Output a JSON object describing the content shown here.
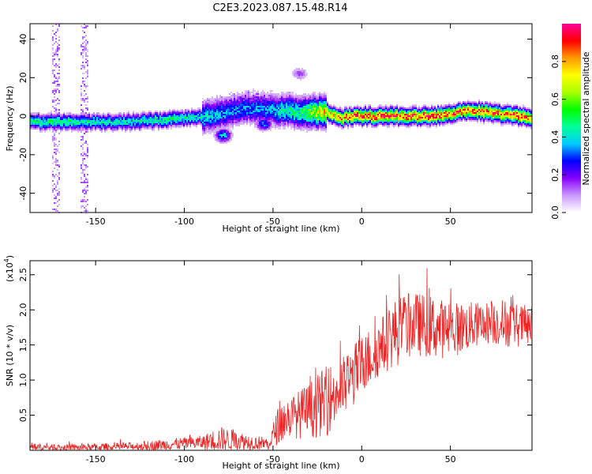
{
  "figure": {
    "title": "C2E3.2023.087.15.48.R14"
  },
  "chart_data": [
    {
      "type": "heatmap",
      "title": "C2E3.2023.087.15.48.R14",
      "xlabel": "Height of straight line (km)",
      "ylabel": "Frequency (Hz)",
      "xlim": [
        -187,
        96
      ],
      "ylim": [
        -50,
        48
      ],
      "xticks": [
        -150,
        -100,
        -50,
        0,
        50
      ],
      "yticks": [
        -40,
        -20,
        0,
        20,
        40
      ],
      "colorbar": {
        "label": "Normalized spectral amplitude",
        "range": [
          0.0,
          1.0
        ],
        "ticks": [
          0.0,
          0.2,
          0.4,
          0.6,
          0.8
        ],
        "colors": [
          "#ffffff",
          "#cc99ff",
          "#8800ff",
          "#0000ff",
          "#00ccff",
          "#00ff99",
          "#00ff00",
          "#aaff00",
          "#ffff00",
          "#ff9900",
          "#ff0000",
          "#ff0099"
        ]
      },
      "ridge": {
        "description": "Dominant frequency trace versus height",
        "x": [
          -187,
          -170,
          -150,
          -130,
          -110,
          -95,
          -85,
          -75,
          -65,
          -55,
          -50,
          -45,
          -40,
          -35,
          -30,
          -25,
          -20,
          -15,
          -10,
          -5,
          0,
          10,
          20,
          30,
          40,
          50,
          55,
          60,
          70,
          80,
          90,
          96
        ],
        "y": [
          -3,
          -3,
          -3,
          -3,
          -2,
          -1,
          0,
          2,
          4,
          4,
          3,
          3,
          3,
          2,
          2,
          2,
          2,
          0,
          -1,
          0,
          0,
          0,
          0,
          0,
          0,
          1,
          2,
          3,
          2,
          1,
          0,
          -2
        ],
        "peak_amplitude": [
          0.45,
          0.5,
          0.45,
          0.45,
          0.5,
          0.45,
          0.4,
          0.35,
          0.35,
          0.35,
          0.4,
          0.45,
          0.5,
          0.5,
          0.6,
          0.7,
          0.8,
          0.85,
          0.9,
          0.95,
          0.95,
          0.95,
          0.95,
          0.95,
          1.0,
          0.95,
          0.9,
          0.9,
          0.95,
          0.9,
          0.95,
          0.9
        ]
      },
      "extra_blobs": [
        {
          "x": -78,
          "y": -10,
          "amp": 0.4
        },
        {
          "x": -55,
          "y": -4,
          "amp": 0.35
        },
        {
          "x": -35,
          "y": 22,
          "amp": 0.15
        },
        {
          "x": -172,
          "y": 0,
          "amp": 0.1,
          "vertical": true
        },
        {
          "x": -156,
          "y": 0,
          "amp": 0.1,
          "vertical": true
        }
      ]
    },
    {
      "type": "line",
      "xlabel": "Height of straight line (km)",
      "ylabel": "SNR (10 * v/v)",
      "y_multiplier": "(x10",
      "y_multiplier_exp": "4",
      "y_multiplier_close": ")",
      "xlim": [
        -187,
        96
      ],
      "ylim": [
        0,
        2.7
      ],
      "xticks": [
        -150,
        -100,
        -50,
        0,
        50
      ],
      "yticks": [
        0.5,
        1.0,
        1.5,
        2.0,
        2.5
      ],
      "ytick_labels": [
        "0.5",
        "1.0",
        "1.5",
        "2.0",
        "2.5"
      ],
      "series": [
        {
          "color": "#ee2222",
          "envelope_x": [
            -187,
            -170,
            -150,
            -130,
            -110,
            -90,
            -80,
            -70,
            -60,
            -52,
            -48,
            -45,
            -40,
            -30,
            -20,
            -10,
            0,
            10,
            20,
            30,
            40,
            50,
            60,
            70,
            80,
            90,
            96
          ],
          "envelope_base": [
            0.05,
            0.04,
            0.05,
            0.06,
            0.09,
            0.12,
            0.18,
            0.15,
            0.12,
            0.1,
            0.35,
            0.45,
            0.5,
            0.6,
            0.75,
            0.95,
            1.25,
            1.5,
            1.75,
            1.85,
            1.8,
            1.75,
            1.8,
            1.85,
            1.85,
            1.8,
            1.8
          ],
          "envelope_amp": [
            0.05,
            0.05,
            0.05,
            0.06,
            0.08,
            0.1,
            0.18,
            0.14,
            0.1,
            0.1,
            0.25,
            0.3,
            0.3,
            0.4,
            0.5,
            0.45,
            0.45,
            0.4,
            0.5,
            0.45,
            0.45,
            0.4,
            0.35,
            0.3,
            0.35,
            0.3,
            0.3
          ]
        }
      ]
    }
  ]
}
